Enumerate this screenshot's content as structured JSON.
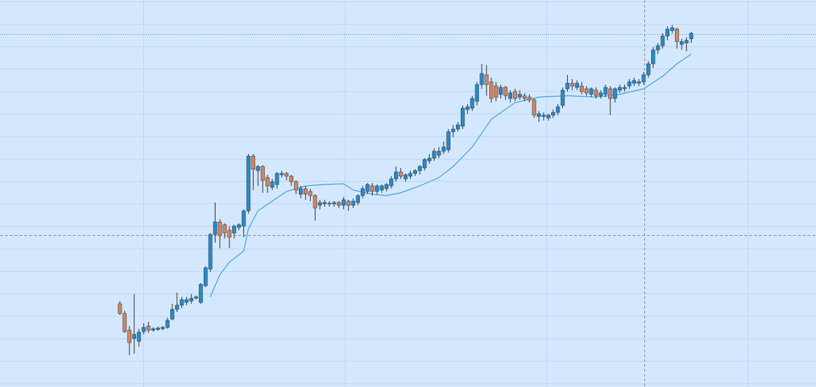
{
  "chart_data": {
    "type": "candlestick",
    "ylim": [
      0,
      558
    ],
    "up_color": "#2b8ac6",
    "down_color": "#d9845c",
    "wick_color": "#2a2a2a",
    "open": [
      120,
      106,
      82,
      70,
      66,
      80,
      88,
      82,
      83,
      84,
      86,
      98,
      112,
      118,
      122,
      124,
      128,
      122,
      146,
      170,
      220,
      238,
      234,
      226,
      222,
      230,
      232,
      254,
      333,
      312,
      318,
      302,
      288,
      292,
      306,
      308,
      304,
      296,
      278,
      286,
      282,
      276,
      262,
      264,
      264,
      264,
      266,
      262,
      268,
      262,
      266,
      276,
      282,
      290,
      282,
      284,
      286,
      290,
      300,
      310,
      300,
      304,
      308,
      312,
      316,
      326,
      330,
      334,
      340,
      342,
      368,
      372,
      376,
      400,
      402,
      412,
      436,
      450,
      440,
      434,
      422,
      432,
      416,
      426,
      418,
      420,
      418,
      414,
      390,
      390,
      388,
      392,
      396,
      406,
      430,
      438,
      432,
      434,
      430,
      422,
      428,
      420,
      422,
      430,
      416,
      428,
      430,
      434,
      438,
      438,
      440,
      450,
      466,
      486,
      492,
      506,
      514,
      516,
      494,
      496,
      502
    ],
    "high": [
      124,
      110,
      88,
      134,
      84,
      92,
      94,
      86,
      87,
      88,
      100,
      120,
      136,
      130,
      130,
      134,
      132,
      150,
      174,
      222,
      266,
      242,
      236,
      232,
      234,
      236,
      256,
      336,
      336,
      320,
      320,
      306,
      300,
      310,
      312,
      310,
      306,
      298,
      290,
      290,
      286,
      278,
      270,
      270,
      268,
      268,
      268,
      274,
      270,
      272,
      278,
      290,
      294,
      294,
      292,
      292,
      294,
      304,
      318,
      316,
      308,
      312,
      314,
      320,
      330,
      336,
      344,
      346,
      354,
      372,
      378,
      382,
      406,
      408,
      420,
      440,
      466,
      464,
      446,
      440,
      436,
      434,
      428,
      430,
      428,
      424,
      422,
      416,
      398,
      396,
      394,
      400,
      408,
      432,
      450,
      444,
      442,
      440,
      434,
      432,
      432,
      428,
      436,
      434,
      432,
      436,
      436,
      444,
      446,
      444,
      454,
      470,
      490,
      496,
      510,
      520,
      522,
      518,
      502,
      504,
      512
    ],
    "low": [
      104,
      78,
      46,
      48,
      58,
      76,
      78,
      80,
      81,
      82,
      84,
      96,
      108,
      114,
      118,
      120,
      126,
      120,
      144,
      166,
      208,
      200,
      214,
      200,
      214,
      226,
      216,
      250,
      284,
      290,
      280,
      280,
      284,
      286,
      302,
      298,
      290,
      278,
      272,
      270,
      268,
      240,
      256,
      260,
      260,
      260,
      258,
      256,
      254,
      258,
      262,
      272,
      278,
      276,
      278,
      280,
      282,
      286,
      296,
      300,
      296,
      300,
      304,
      306,
      312,
      322,
      326,
      330,
      336,
      338,
      360,
      368,
      372,
      394,
      398,
      406,
      430,
      420,
      410,
      412,
      416,
      414,
      410,
      412,
      414,
      412,
      410,
      388,
      382,
      384,
      384,
      388,
      392,
      402,
      426,
      428,
      428,
      422,
      420,
      418,
      416,
      416,
      418,
      392,
      410,
      424,
      426,
      430,
      434,
      434,
      436,
      446,
      460,
      480,
      488,
      500,
      510,
      488,
      486,
      484,
      496
    ],
    "close": [
      106,
      80,
      64,
      76,
      79,
      86,
      82,
      84,
      85,
      86,
      96,
      112,
      118,
      126,
      126,
      128,
      130,
      148,
      172,
      220,
      238,
      218,
      222,
      216,
      232,
      234,
      254,
      333,
      314,
      318,
      298,
      290,
      296,
      308,
      308,
      304,
      296,
      284,
      286,
      278,
      276,
      258,
      266,
      266,
      265,
      266,
      262,
      270,
      262,
      268,
      276,
      286,
      292,
      282,
      290,
      290,
      292,
      300,
      310,
      304,
      306,
      308,
      312,
      318,
      328,
      330,
      340,
      340,
      346,
      368,
      372,
      378,
      402,
      404,
      416,
      436,
      452,
      436,
      416,
      418,
      432,
      420,
      424,
      416,
      422,
      416,
      414,
      392,
      394,
      392,
      392,
      396,
      404,
      428,
      438,
      434,
      438,
      426,
      424,
      430,
      420,
      424,
      432,
      416,
      430,
      432,
      432,
      440,
      442,
      440,
      450,
      466,
      486,
      492,
      506,
      516,
      518,
      498,
      498,
      500,
      510
    ],
    "ma": {
      "color": "#3aa0d8",
      "x": [
        19,
        21,
        23,
        26,
        27,
        29,
        32,
        35,
        39,
        43,
        47,
        49,
        53,
        56,
        59,
        63,
        67,
        70,
        74,
        78,
        83,
        88,
        94,
        100,
        105,
        110,
        114,
        117,
        120
      ],
      "values": [
        130,
        162,
        180,
        196,
        228,
        254,
        268,
        282,
        290,
        292,
        293,
        284,
        278,
        276,
        280,
        290,
        302,
        318,
        346,
        386,
        410,
        418,
        420,
        418,
        422,
        430,
        448,
        466,
        480
      ]
    }
  }
}
